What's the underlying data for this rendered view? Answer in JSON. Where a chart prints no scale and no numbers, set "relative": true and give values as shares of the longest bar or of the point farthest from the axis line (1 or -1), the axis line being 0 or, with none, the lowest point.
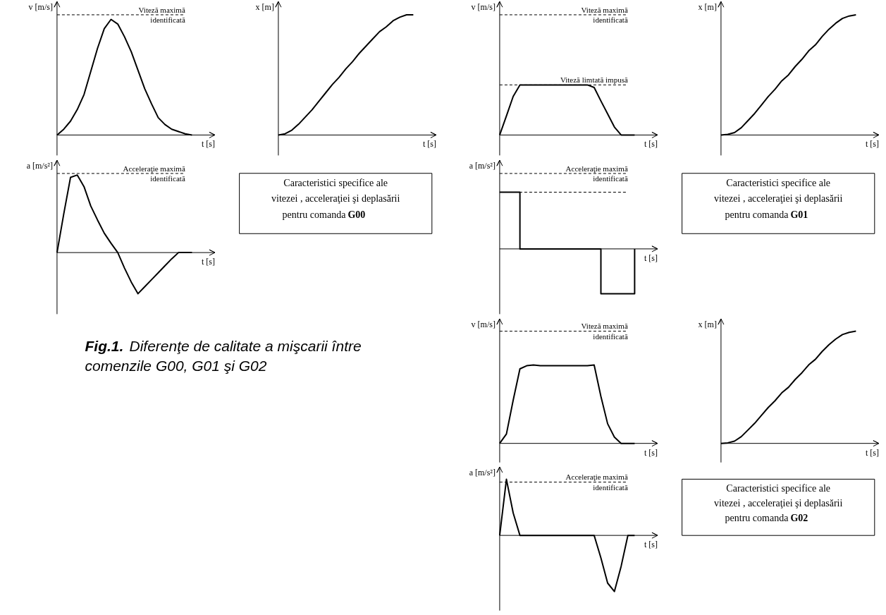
{
  "chart_data": [
    {
      "type": "line",
      "relative": true,
      "ylabel": "v [m/s]",
      "xlabel": "t [s]",
      "line_style": "solid",
      "categories": [
        null,
        null,
        null,
        null,
        null,
        null,
        null,
        null,
        null,
        null,
        null,
        null,
        null,
        null,
        null,
        null,
        null,
        null,
        null,
        null,
        null
      ],
      "series": [
        {
          "color": "#000000",
          "values": [
            0,
            0.05,
            0.12,
            0.22,
            0.35,
            0.55,
            0.75,
            0.92,
            1.0,
            0.96,
            0.85,
            0.72,
            0.56,
            0.4,
            0.27,
            0.15,
            0.09,
            0.05,
            0.03,
            0.01,
            0
          ]
        }
      ],
      "ref_lines": [
        {
          "axis": "y",
          "value": 1.04,
          "label": "Viteză maximă identificată",
          "line_style": "dashed"
        }
      ]
    },
    {
      "type": "line",
      "relative": true,
      "ylabel": "x [m]",
      "xlabel": "t [s]",
      "line_style": "solid",
      "categories": [
        null,
        null,
        null,
        null,
        null,
        null,
        null,
        null,
        null,
        null,
        null,
        null,
        null,
        null,
        null,
        null,
        null,
        null,
        null,
        null,
        null
      ],
      "series": [
        {
          "color": "#000000",
          "values": [
            0,
            0.01,
            0.04,
            0.09,
            0.15,
            0.21,
            0.28,
            0.35,
            0.42,
            0.48,
            0.55,
            0.61,
            0.68,
            0.74,
            0.8,
            0.86,
            0.9,
            0.95,
            0.98,
            1.0,
            1.0
          ]
        }
      ]
    },
    {
      "type": "line",
      "relative": true,
      "ylabel": "a [m/s²]",
      "xlabel": "t [s]",
      "line_style": "solid",
      "categories": [
        null,
        null,
        null,
        null,
        null,
        null,
        null,
        null,
        null,
        null,
        null,
        null,
        null,
        null,
        null,
        null,
        null,
        null,
        null,
        null,
        null
      ],
      "series": [
        {
          "color": "#000000",
          "values": [
            0,
            0.5,
            0.97,
            1.0,
            0.85,
            0.6,
            0.42,
            0.25,
            0.12,
            0,
            -0.2,
            -0.38,
            -0.53,
            -0.44,
            -0.35,
            -0.26,
            -0.17,
            -0.08,
            0,
            0,
            0
          ]
        }
      ],
      "ref_lines": [
        {
          "axis": "y",
          "value": 1.02,
          "label": "Acceleraţie maximă identificată",
          "line_style": "dashed"
        }
      ]
    },
    {
      "type": "other",
      "annotations": [
        "Caracteristici specifice ale",
        "vitezei , acceleraţiei şi deplasării",
        "pentru comanda",
        "G00"
      ]
    },
    {
      "type": "other",
      "annotations": [
        "Fig.1.",
        "Diferenţe de calitate a mişcarii între",
        "comenzile G00, G01 şi G02"
      ]
    },
    {
      "type": "line",
      "relative": true,
      "ylabel": "v [m/s]",
      "xlabel": "t [s]",
      "line_style": "solid",
      "categories": [
        null,
        null,
        null,
        null,
        null,
        null,
        null,
        null,
        null,
        null,
        null,
        null,
        null,
        null,
        null,
        null,
        null,
        null,
        null,
        null,
        null
      ],
      "series": [
        {
          "color": "#000000",
          "values": [
            0,
            0.38,
            0.77,
            1,
            1,
            1,
            1,
            1,
            1,
            1,
            1,
            1,
            1,
            1,
            0.95,
            0.68,
            0.42,
            0.16,
            0,
            0,
            0
          ]
        }
      ],
      "ref_lines": [
        {
          "axis": "y",
          "value": 2.4,
          "label": "Viteză maximă identificată",
          "line_style": "dashed"
        },
        {
          "axis": "y",
          "value": 1.0,
          "label": "Viteză limtată impusă",
          "line_style": "dashed"
        }
      ]
    },
    {
      "type": "line",
      "relative": true,
      "ylabel": "x [m]",
      "xlabel": "t [s]",
      "line_style": "solid",
      "categories": [
        null,
        null,
        null,
        null,
        null,
        null,
        null,
        null,
        null,
        null,
        null,
        null,
        null,
        null,
        null,
        null,
        null,
        null,
        null,
        null,
        null
      ],
      "series": [
        {
          "color": "#000000",
          "values": [
            0,
            0.005,
            0.02,
            0.06,
            0.12,
            0.18,
            0.25,
            0.32,
            0.38,
            0.45,
            0.5,
            0.57,
            0.63,
            0.7,
            0.75,
            0.82,
            0.88,
            0.93,
            0.97,
            0.99,
            1
          ]
        }
      ]
    },
    {
      "type": "step",
      "relative": true,
      "ylabel": "a [m/s²]",
      "xlabel": "t [s]",
      "line_style": "solid",
      "categories": [
        null,
        null,
        null,
        null,
        null,
        null,
        null,
        null,
        null,
        null,
        null,
        null,
        null,
        null,
        null,
        null,
        null,
        null,
        null,
        null,
        null
      ],
      "series": [
        {
          "color": "#000000",
          "values": [
            1,
            1,
            1,
            0,
            0,
            0,
            0,
            0,
            0,
            0,
            0,
            0,
            0,
            0,
            0,
            -0.79,
            -0.79,
            -0.79,
            -0.79,
            -0.79,
            0
          ]
        }
      ],
      "ref_lines": [
        {
          "axis": "y",
          "value": 1.33,
          "label": "Acceleraţie maximă identificată",
          "line_style": "dashed"
        },
        {
          "axis": "y",
          "value": 1.0,
          "label": null,
          "line_style": "dashed"
        }
      ]
    },
    {
      "type": "other",
      "annotations": [
        "Caracteristici specifice ale",
        "vitezei , acceleraţiei şi deplasării",
        "pentru comanda",
        "G01"
      ]
    },
    {
      "type": "line",
      "relative": true,
      "ylabel": "v [m/s]",
      "xlabel": "t [s]",
      "line_style": "solid",
      "categories": [
        null,
        null,
        null,
        null,
        null,
        null,
        null,
        null,
        null,
        null,
        null,
        null,
        null,
        null,
        null,
        null,
        null,
        null,
        null,
        null,
        null
      ],
      "series": [
        {
          "color": "#000000",
          "values": [
            0,
            0.12,
            0.55,
            0.95,
            0.99,
            1,
            0.99,
            0.99,
            0.99,
            0.99,
            0.99,
            0.99,
            0.99,
            0.99,
            1,
            0.6,
            0.25,
            0.08,
            0,
            0,
            0
          ]
        }
      ],
      "ref_lines": [
        {
          "axis": "y",
          "value": 1.43,
          "label": "Viteză maximă identificată",
          "line_style": "dashed"
        }
      ]
    },
    {
      "type": "line",
      "relative": true,
      "ylabel": "x [m]",
      "xlabel": "t [s]",
      "line_style": "solid",
      "categories": [
        null,
        null,
        null,
        null,
        null,
        null,
        null,
        null,
        null,
        null,
        null,
        null,
        null,
        null,
        null,
        null,
        null,
        null,
        null,
        null,
        null
      ],
      "series": [
        {
          "color": "#000000",
          "values": [
            0,
            0.005,
            0.02,
            0.06,
            0.12,
            0.18,
            0.25,
            0.32,
            0.38,
            0.45,
            0.5,
            0.57,
            0.63,
            0.7,
            0.75,
            0.82,
            0.88,
            0.93,
            0.97,
            0.99,
            1
          ]
        }
      ]
    },
    {
      "type": "line",
      "relative": true,
      "ylabel": "a [m/s²]",
      "xlabel": "t [s]",
      "line_style": "solid",
      "categories": [
        null,
        null,
        null,
        null,
        null,
        null,
        null,
        null,
        null,
        null,
        null,
        null,
        null,
        null,
        null,
        null,
        null,
        null,
        null,
        null,
        null
      ],
      "series": [
        {
          "color": "#000000",
          "values": [
            0,
            1,
            0.4,
            0,
            0,
            0,
            0,
            0,
            0,
            0,
            0,
            0,
            0,
            0,
            0,
            -0.4,
            -0.85,
            -1,
            -0.55,
            0,
            0
          ]
        }
      ],
      "ref_lines": [
        {
          "axis": "y",
          "value": 0.95,
          "label": "Acceleraţie maximă identificată",
          "line_style": "dashed"
        }
      ]
    },
    {
      "type": "other",
      "annotations": [
        "Caracteristici specifice ale",
        "vitezei , acceleraţiei şi deplasării",
        "pentru comanda",
        "G02"
      ]
    }
  ]
}
